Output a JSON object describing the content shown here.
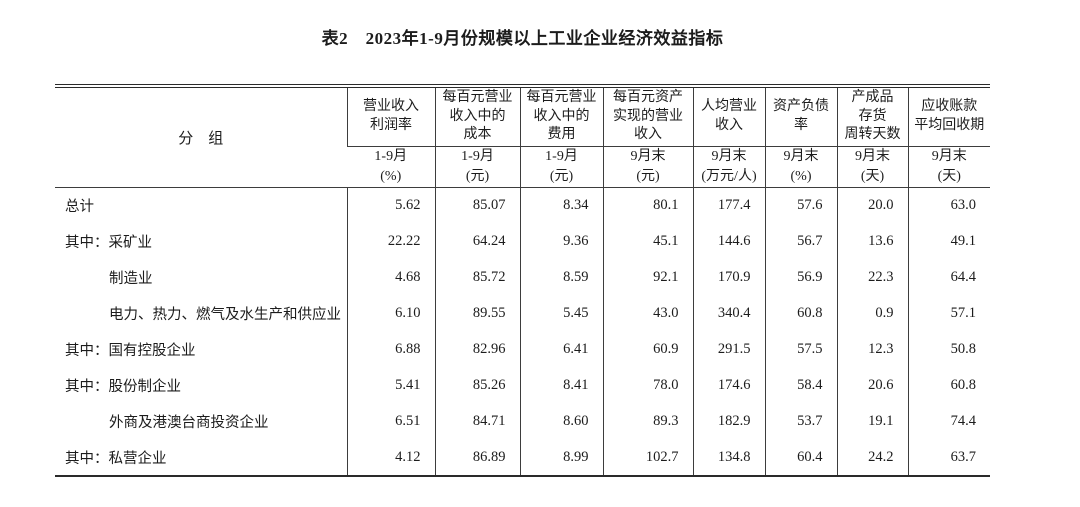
{
  "title": "表2　2023年1-9月份规模以上工业企业经济效益指标",
  "table": {
    "group_header": "分　组",
    "columns": [
      {
        "title": "营业收入\n利润率",
        "sub": "1-9月\n(%)"
      },
      {
        "title": "每百元营业\n收入中的\n成本",
        "sub": "1-9月\n(元)"
      },
      {
        "title": "每百元营业\n收入中的\n费用",
        "sub": "1-9月\n(元)"
      },
      {
        "title": "每百元资产\n实现的营业\n收入",
        "sub": "9月末\n(元)"
      },
      {
        "title": "人均营业\n收入",
        "sub": "9月末\n(万元/人)"
      },
      {
        "title": "资产负债\n率",
        "sub": "9月末\n(%)"
      },
      {
        "title": "产成品\n存货\n周转天数",
        "sub": "9月末\n(天)"
      },
      {
        "title": "应收账款\n平均回收期",
        "sub": "9月末\n(天)"
      }
    ],
    "rows": [
      {
        "label": "总计",
        "indent": false,
        "values": [
          "5.62",
          "85.07",
          "8.34",
          "80.1",
          "177.4",
          "57.6",
          "20.0",
          "63.0"
        ]
      },
      {
        "label": "其中：采矿业",
        "indent": false,
        "values": [
          "22.22",
          "64.24",
          "9.36",
          "45.1",
          "144.6",
          "56.7",
          "13.6",
          "49.1"
        ]
      },
      {
        "label": "制造业",
        "indent": true,
        "values": [
          "4.68",
          "85.72",
          "8.59",
          "92.1",
          "170.9",
          "56.9",
          "22.3",
          "64.4"
        ]
      },
      {
        "label": "电力、热力、燃气及水生产和供应业",
        "indent": true,
        "values": [
          "6.10",
          "89.55",
          "5.45",
          "43.0",
          "340.4",
          "60.8",
          "0.9",
          "57.1"
        ]
      },
      {
        "label": "其中：国有控股企业",
        "indent": false,
        "values": [
          "6.88",
          "82.96",
          "6.41",
          "60.9",
          "291.5",
          "57.5",
          "12.3",
          "50.8"
        ]
      },
      {
        "label": "其中：股份制企业",
        "indent": false,
        "values": [
          "5.41",
          "85.26",
          "8.41",
          "78.0",
          "174.6",
          "58.4",
          "20.6",
          "60.8"
        ]
      },
      {
        "label": "外商及港澳台商投资企业",
        "indent": true,
        "values": [
          "6.51",
          "84.71",
          "8.60",
          "89.3",
          "182.9",
          "53.7",
          "19.1",
          "74.4"
        ]
      },
      {
        "label": "其中：私营企业",
        "indent": false,
        "values": [
          "4.12",
          "86.89",
          "8.99",
          "102.7",
          "134.8",
          "60.4",
          "24.2",
          "63.7"
        ]
      }
    ]
  }
}
